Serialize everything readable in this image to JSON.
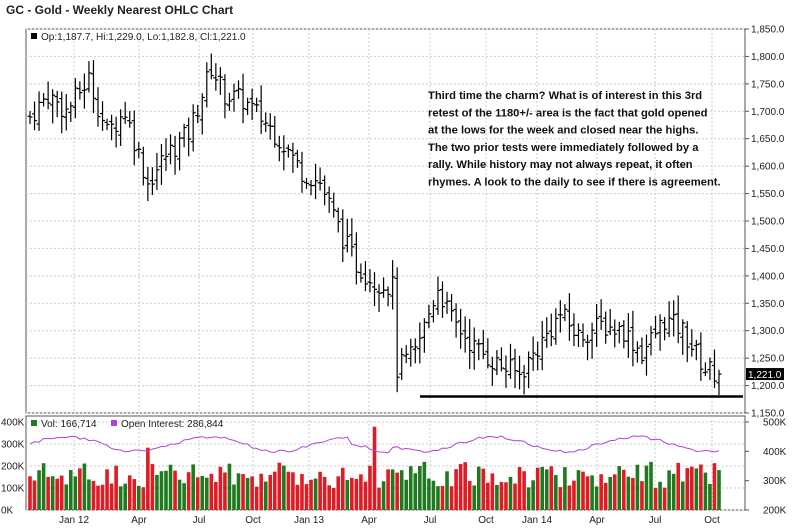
{
  "chart_data": {
    "type": "ohlc",
    "title": "GC - Gold - Weekly Nearest OHLC Chart",
    "legend": {
      "ohlc": "Op:1,187.7, Hi:1,229.0, Lo:1,182.8, Cl:1,221.0",
      "vol": "Vol: 166,714",
      "oi": "Open Interest: 286,844"
    },
    "last_close_label": "1,221.0",
    "price_axis": {
      "ticks": [
        "1,850.0",
        "1,800.0",
        "1,750.0",
        "1,700.0",
        "1,650.0",
        "1,600.0",
        "1,550.0",
        "1,500.0",
        "1,450.0",
        "1,400.0",
        "1,350.0",
        "1,300.0",
        "1,250.0",
        "1,200.0",
        "1,150.0"
      ],
      "ylim": [
        1150,
        1850
      ]
    },
    "volume_axis": {
      "ticks": [
        "400K",
        "300K",
        "200K",
        "100K",
        "0K"
      ],
      "ylim": [
        0,
        400000
      ]
    },
    "oi_axis": {
      "ticks": [
        "500K",
        "400K",
        "300K",
        "200K"
      ],
      "ylim": [
        200000,
        500000
      ]
    },
    "x_ticks": [
      "Jan 12",
      "Apr",
      "Jul",
      "Oct",
      "Jan 13",
      "Apr",
      "Jul",
      "Oct",
      "Jan 14",
      "Apr",
      "Jul",
      "Oct"
    ],
    "price_close_anchors": [
      [
        0,
        1690
      ],
      [
        4,
        1730
      ],
      [
        8,
        1700
      ],
      [
        13,
        1760
      ],
      [
        17,
        1660
      ],
      [
        21,
        1700
      ],
      [
        26,
        1570
      ],
      [
        30,
        1620
      ],
      [
        35,
        1660
      ],
      [
        40,
        1780
      ],
      [
        43,
        1730
      ],
      [
        47,
        1720
      ],
      [
        52,
        1680
      ],
      [
        56,
        1640
      ],
      [
        60,
        1590
      ],
      [
        64,
        1570
      ],
      [
        69,
        1470
      ],
      [
        72,
        1420
      ],
      [
        76,
        1390
      ],
      [
        80,
        1380
      ],
      [
        81,
        1230
      ],
      [
        85,
        1260
      ],
      [
        90,
        1380
      ],
      [
        93,
        1320
      ],
      [
        98,
        1270
      ],
      [
        103,
        1240
      ],
      [
        108,
        1220
      ],
      [
        113,
        1280
      ],
      [
        117,
        1330
      ],
      [
        121,
        1290
      ],
      [
        126,
        1310
      ],
      [
        131,
        1300
      ],
      [
        135,
        1260
      ],
      [
        140,
        1320
      ],
      [
        144,
        1300
      ],
      [
        149,
        1230
      ],
      [
        152,
        1221
      ]
    ],
    "support_line": {
      "price": 1180,
      "label": ""
    },
    "annotation": [
      "Third time the charm?  What is of interest in this 3rd",
      "retest of the 1180+/- area is the fact that gold opened",
      "at the lows for the week and closed near the highs.",
      "The two prior tests were immediately followed by a",
      "rally.  While history may not always repeat, it often",
      "rhymes.  A look to the daily to see if there is agreement."
    ],
    "colors": {
      "up_volume": "#1f7a1f",
      "down_volume": "#e01b24",
      "open_interest": "#b044d9",
      "price": "#000000",
      "legend_vol": "#1f7a1f",
      "legend_oi": "#b044d9"
    }
  }
}
